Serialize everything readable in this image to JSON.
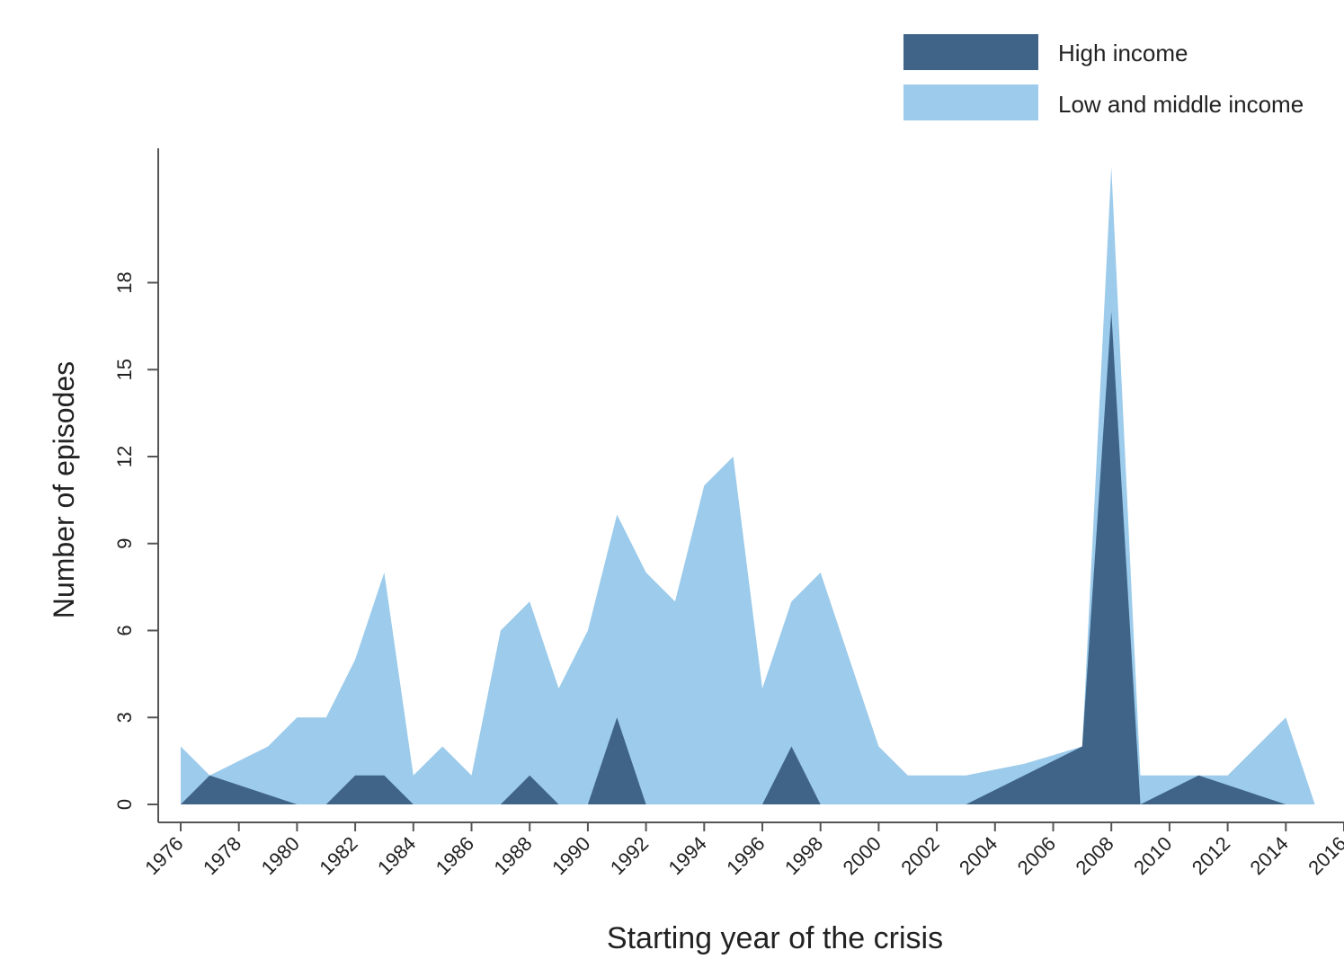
{
  "chart_data": {
    "type": "area",
    "title": "",
    "xlabel": "Starting year of the crisis",
    "ylabel": "Number of episodes",
    "xlim": [
      1976,
      2016
    ],
    "ylim": [
      0,
      24
    ],
    "x_ticks": [
      1976,
      1978,
      1980,
      1982,
      1984,
      1986,
      1988,
      1990,
      1992,
      1994,
      1996,
      1998,
      2000,
      2002,
      2004,
      2006,
      2008,
      2010,
      2012,
      2014,
      2016
    ],
    "y_ticks": [
      0,
      3,
      6,
      9,
      12,
      15,
      18
    ],
    "grid": false,
    "legend_position": "top-right",
    "series": [
      {
        "name": "Low and middle income",
        "color": "#9ccbeb",
        "x": [
          1976,
          1977,
          1978,
          1979,
          1980,
          1981,
          1982,
          1983,
          1984,
          1985,
          1986,
          1987,
          1988,
          1989,
          1990,
          1991,
          1992,
          1993,
          1994,
          1995,
          1996,
          1997,
          1998,
          1999,
          2000,
          2001,
          2002,
          2003,
          2004,
          2005,
          2006,
          2007,
          2008,
          2009,
          2010,
          2011,
          2012,
          2013,
          2014,
          2015
        ],
        "values": [
          2,
          1,
          1.5,
          2,
          3,
          3,
          5,
          8,
          1,
          2,
          1,
          6,
          7,
          4,
          6,
          10,
          8,
          7,
          11,
          12,
          4,
          7,
          8,
          5,
          2,
          1,
          1,
          1,
          1.2,
          1.4,
          1.7,
          2,
          22,
          1,
          1,
          1,
          1,
          2,
          3,
          0
        ]
      },
      {
        "name": "High income",
        "color": "#3f6488",
        "segments": [
          {
            "x": [
              1976,
              1977,
              1980
            ],
            "values": [
              0,
              1,
              0
            ]
          },
          {
            "x": [
              1981,
              1982,
              1983,
              1984
            ],
            "values": [
              0,
              1,
              1,
              0
            ]
          },
          {
            "x": [
              1987,
              1988,
              1989
            ],
            "values": [
              0,
              1,
              0
            ]
          },
          {
            "x": [
              1990,
              1991,
              1992
            ],
            "values": [
              0,
              3,
              0
            ]
          },
          {
            "x": [
              1996,
              1997,
              1998
            ],
            "values": [
              0,
              2,
              0
            ]
          },
          {
            "x": [
              2003,
              2007,
              2008,
              2009
            ],
            "values": [
              0,
              2,
              17,
              0
            ]
          },
          {
            "x": [
              2009,
              2011,
              2014
            ],
            "values": [
              0,
              1,
              0
            ]
          }
        ]
      }
    ]
  }
}
